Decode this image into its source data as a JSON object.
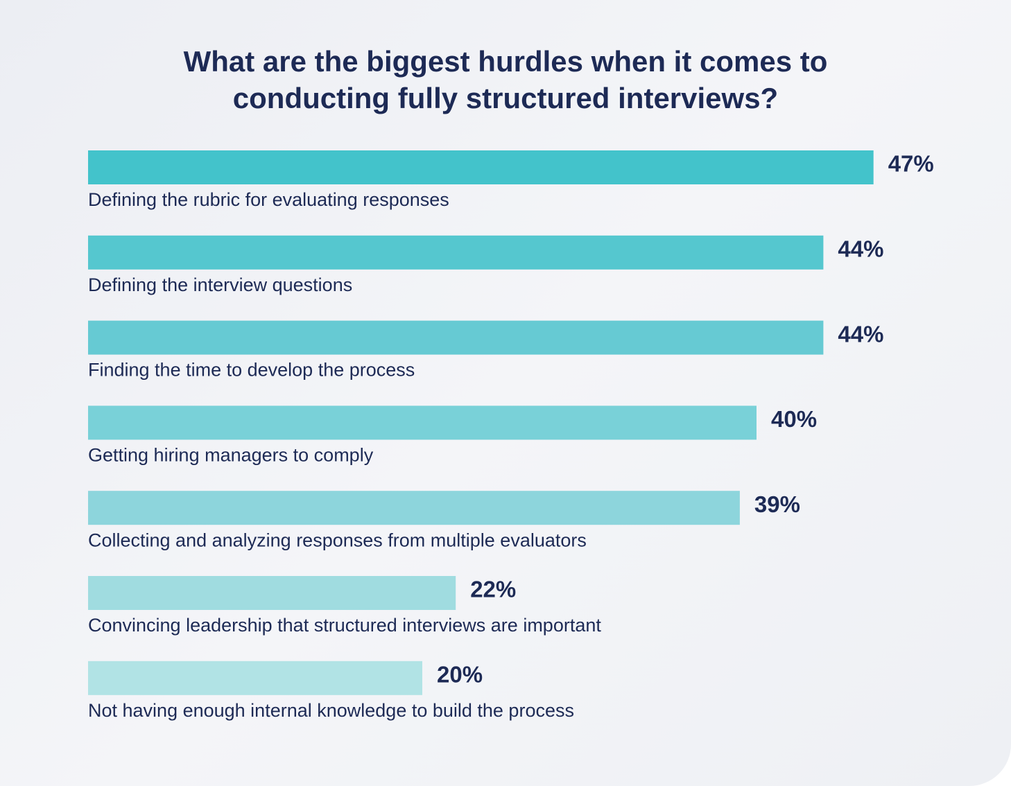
{
  "chart_data": {
    "type": "bar",
    "orientation": "horizontal",
    "title": "What are the biggest hurdles when it comes to conducting fully structured interviews?",
    "categories": [
      "Defining the rubric for evaluating responses",
      "Defining the interview questions",
      "Finding the time to develop the process",
      "Getting hiring managers to comply",
      "Collecting and analyzing responses from multiple evaluators",
      "Convincing leadership that structured interviews are important",
      "Not having enough internal knowledge to build the process"
    ],
    "values": [
      47,
      44,
      44,
      40,
      39,
      22,
      20
    ],
    "value_labels": [
      "47%",
      "44%",
      "44%",
      "40%",
      "39%",
      "22%",
      "20%"
    ],
    "colors": [
      "#43c3cb",
      "#55c7cf",
      "#66cad3",
      "#79d1d8",
      "#8dd5dc",
      "#a0dce0",
      "#b1e3e5"
    ]
  }
}
